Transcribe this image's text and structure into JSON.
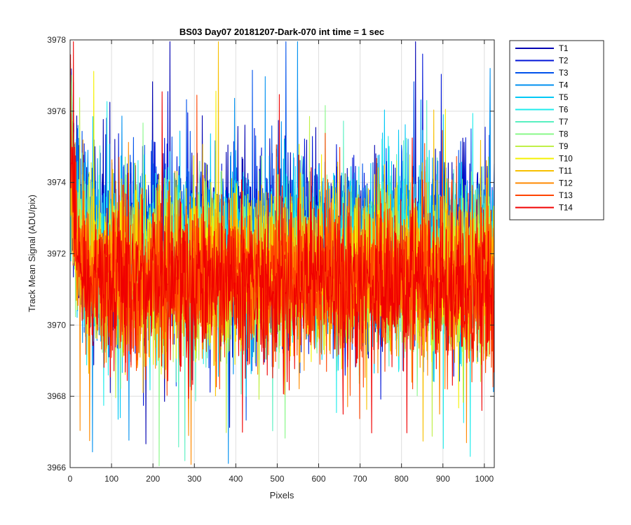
{
  "chart_data": {
    "type": "line",
    "title": "BS03 Day07 20181207-Dark-070 int time = 1 sec",
    "xlabel": "Pixels",
    "ylabel": "Track Mean Signal (ADU/pix)",
    "xlim": [
      0,
      1024
    ],
    "ylim": [
      3966,
      3978
    ],
    "xticks": [
      0,
      100,
      200,
      300,
      400,
      500,
      600,
      700,
      800,
      900,
      1000
    ],
    "yticks": [
      3966,
      3968,
      3970,
      3972,
      3974,
      3976,
      3978
    ],
    "grid": true,
    "legend_position": "outside-right",
    "x_count": 1024,
    "series": [
      {
        "name": "T1",
        "color": "#0000b2",
        "mean": 3972.3,
        "spread": 1.2,
        "start": 3975.8
      },
      {
        "name": "T2",
        "color": "#0015d8",
        "mean": 3972.2,
        "spread": 1.2,
        "start": 3976.6
      },
      {
        "name": "T3",
        "color": "#0052ec",
        "mean": 3972.1,
        "spread": 1.2,
        "start": 3977.0
      },
      {
        "name": "T4",
        "color": "#0090f0",
        "mean": 3972.0,
        "spread": 1.15,
        "start": 3976.4
      },
      {
        "name": "T5",
        "color": "#00c8f6",
        "mean": 3971.9,
        "spread": 1.15,
        "start": 3976.0
      },
      {
        "name": "T6",
        "color": "#20ecec",
        "mean": 3971.8,
        "spread": 1.15,
        "start": 3975.6
      },
      {
        "name": "T7",
        "color": "#58f0c0",
        "mean": 3971.7,
        "spread": 1.1,
        "start": 3975.2
      },
      {
        "name": "T8",
        "color": "#88f888",
        "mean": 3971.6,
        "spread": 1.1,
        "start": 3975.0
      },
      {
        "name": "T9",
        "color": "#c0f048",
        "mean": 3971.5,
        "spread": 1.1,
        "start": 3974.8
      },
      {
        "name": "T10",
        "color": "#f4f000",
        "mean": 3971.5,
        "spread": 1.1,
        "start": 3974.6
      },
      {
        "name": "T11",
        "color": "#f8c000",
        "mean": 3971.4,
        "spread": 1.1,
        "start": 3975.0
      },
      {
        "name": "T12",
        "color": "#ff8a00",
        "mean": 3971.3,
        "spread": 1.1,
        "start": 3975.4
      },
      {
        "name": "T13",
        "color": "#ff4400",
        "mean": 3971.3,
        "spread": 1.1,
        "start": 3976.4
      },
      {
        "name": "T14",
        "color": "#f00000",
        "mean": 3971.2,
        "spread": 1.05,
        "start": 3976.8
      }
    ]
  }
}
